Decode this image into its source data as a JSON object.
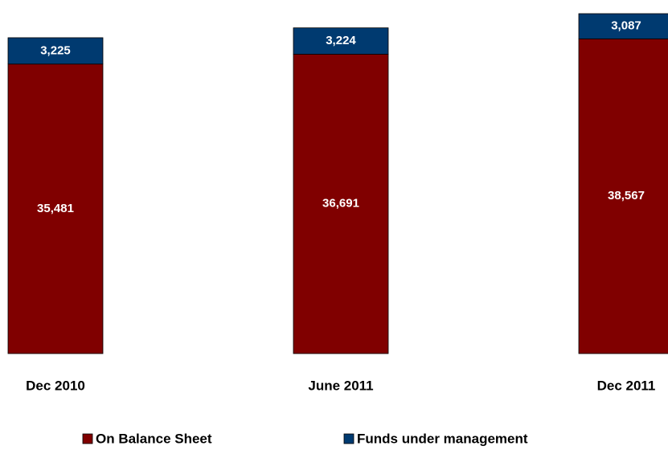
{
  "chart_data": {
    "type": "bar",
    "stacked": true,
    "categories": [
      "Dec 2010",
      "June 2011",
      "Dec 2011"
    ],
    "series": [
      {
        "name": "On Balance Sheet",
        "color": "#800000",
        "values": [
          35481,
          36691,
          38567
        ],
        "value_labels": [
          "35,481",
          "36,691",
          "38,567"
        ]
      },
      {
        "name": "Funds under management",
        "color": "#003a70",
        "values": [
          3225,
          3224,
          3087
        ],
        "value_labels": [
          "3,225",
          "3,224",
          "3,087"
        ]
      }
    ]
  }
}
